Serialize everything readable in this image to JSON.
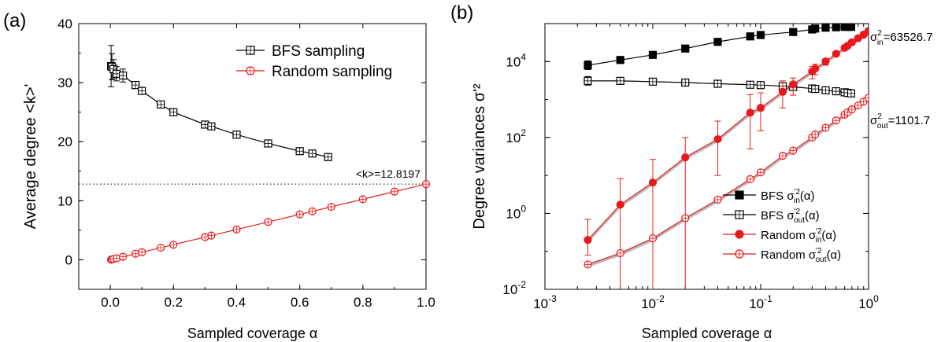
{
  "chart_data": [
    {
      "panel_label": "(a)",
      "type": "line",
      "xlabel": "Sampled coverage α",
      "ylabel": "Average degree <k>'",
      "xlim": [
        -0.1,
        1.0
      ],
      "ylim": [
        -5,
        40
      ],
      "xticks": [
        "0.0",
        "0.2",
        "0.4",
        "0.6",
        "0.8",
        "1.0"
      ],
      "yticks": [
        "0",
        "10",
        "20",
        "30",
        "40"
      ],
      "reference_line": {
        "y": 12.8197,
        "label": "<k>=12.8197",
        "style": "dotted"
      },
      "legend_position": "top-right",
      "colors": {
        "bfs": "#000000",
        "random": "#e8191c"
      },
      "series": [
        {
          "name": "BFS sampling",
          "marker": "open-square",
          "x": [
            0.0025,
            0.005,
            0.01,
            0.02,
            0.04,
            0.08,
            0.1,
            0.16,
            0.2,
            0.3,
            0.32,
            0.4,
            0.5,
            0.6,
            0.64,
            0.69
          ],
          "y": [
            32.8,
            32.7,
            32.3,
            31.5,
            31.2,
            29.6,
            28.6,
            26.3,
            25.0,
            22.9,
            22.6,
            21.2,
            19.7,
            18.4,
            18.0,
            17.4
          ],
          "yerr": [
            3.5,
            2.2,
            1.6,
            1.2,
            1.1,
            0.6,
            0.4,
            0.3,
            0.3,
            0.2,
            0.2,
            0.2,
            0.2,
            0.2,
            0.2,
            0.2
          ]
        },
        {
          "name": "Random sampling",
          "marker": "open-circle",
          "x": [
            0.0025,
            0.005,
            0.01,
            0.02,
            0.04,
            0.08,
            0.1,
            0.16,
            0.2,
            0.3,
            0.32,
            0.4,
            0.5,
            0.6,
            0.64,
            0.7,
            0.8,
            0.9,
            1.0
          ],
          "y": [
            0.03,
            0.06,
            0.13,
            0.26,
            0.51,
            1.03,
            1.28,
            2.05,
            2.56,
            3.85,
            4.1,
            5.13,
            6.41,
            7.69,
            8.2,
            8.97,
            10.26,
            11.54,
            12.82
          ]
        }
      ]
    },
    {
      "panel_label": "(b)",
      "type": "line",
      "scale": "log-log",
      "xlabel": "Sampled coverage α",
      "ylabel": "Degree variances σ'²",
      "xlim": [
        0.001,
        1.0
      ],
      "ylim": [
        0.01,
        100000
      ],
      "xticks": [
        {
          "base": "10",
          "exp": "-3"
        },
        {
          "base": "10",
          "exp": "-2"
        },
        {
          "base": "10",
          "exp": "-1"
        },
        {
          "base": "10",
          "exp": "0"
        }
      ],
      "yticks": [
        {
          "base": "10",
          "exp": "-2"
        },
        {
          "base": "10",
          "exp": "0"
        },
        {
          "base": "10",
          "exp": "2"
        },
        {
          "base": "10",
          "exp": "4"
        }
      ],
      "annotations": {
        "in": {
          "sym": "σ",
          "sup": "2",
          "sub": "in",
          "value": "=63526.7"
        },
        "out": {
          "sym": "σ",
          "sup": "2",
          "sub": "out",
          "value": "=1101.7"
        }
      },
      "legend_position": "bottom-right",
      "legend": [
        {
          "prefix": "BFS σ",
          "sup": "'2",
          "sub": "in",
          "suffix": "(α)"
        },
        {
          "prefix": "BFS σ",
          "sup": "'2",
          "sub": "out",
          "suffix": "(α)"
        },
        {
          "prefix": "Random σ",
          "sup": "'2",
          "sub": "in",
          "suffix": "(α)"
        },
        {
          "prefix": "Random σ",
          "sup": "'2",
          "sub": "out",
          "suffix": "(α)"
        }
      ],
      "series": [
        {
          "key": "bfs_in",
          "marker": "filled-square",
          "color": "#000000",
          "x": [
            0.0025,
            0.005,
            0.01,
            0.02,
            0.04,
            0.08,
            0.1,
            0.2,
            0.3,
            0.32,
            0.4,
            0.5,
            0.6,
            0.64,
            0.69
          ],
          "y": [
            8000,
            11000,
            15000,
            22000,
            33000,
            46000,
            50000,
            60000,
            70000,
            74000,
            78000,
            80000,
            82000,
            82000,
            82000
          ],
          "yerr_factor": [
            1.3,
            1.15,
            1.1,
            1.08,
            1.06,
            1.05,
            1.05,
            1.05,
            1.05,
            1.05,
            1.05,
            1.05,
            1.05,
            1.05,
            1.05
          ]
        },
        {
          "key": "bfs_out",
          "marker": "open-square",
          "color": "#000000",
          "x": [
            0.0025,
            0.005,
            0.01,
            0.02,
            0.04,
            0.08,
            0.1,
            0.16,
            0.2,
            0.3,
            0.32,
            0.4,
            0.5,
            0.6,
            0.64,
            0.69
          ],
          "y": [
            3100,
            3100,
            2950,
            2800,
            2600,
            2450,
            2400,
            2250,
            2150,
            1950,
            1900,
            1750,
            1650,
            1550,
            1500,
            1450
          ],
          "yerr_factor": [
            1.3,
            1.1,
            1.08,
            1.06,
            1.05,
            1.05,
            1.05,
            1.05,
            1.05,
            1.05,
            1.05,
            1.05,
            1.05,
            1.05,
            1.05,
            1.05
          ]
        },
        {
          "key": "random_in",
          "marker": "filled-circle",
          "color": "#e8191c",
          "x": [
            0.0025,
            0.005,
            0.01,
            0.02,
            0.04,
            0.08,
            0.1,
            0.16,
            0.2,
            0.3,
            0.32,
            0.4,
            0.5,
            0.6,
            0.64,
            0.7,
            0.8,
            0.9,
            1.0
          ],
          "y": [
            0.2,
            1.7,
            6.5,
            30,
            90,
            450,
            600,
            1600,
            2500,
            5500,
            6500,
            10000,
            16000,
            23000,
            26000,
            32000,
            41000,
            51000,
            63526.7
          ],
          "yerr_lo": [
            0.12,
            1.7,
            6.5,
            30,
            80,
            400,
            450,
            1000,
            1200,
            2000,
            2000,
            2000,
            2500,
            3000,
            2500,
            2000,
            2000,
            2000,
            0
          ],
          "yerr_hi": [
            0.5,
            6.5,
            20,
            70,
            180,
            900,
            900,
            1500,
            1200,
            2000,
            2000,
            2000,
            2500,
            3000,
            2500,
            2000,
            2000,
            2000,
            0
          ]
        },
        {
          "key": "random_out",
          "marker": "open-circle",
          "color": "#e8191c",
          "x": [
            0.0025,
            0.005,
            0.01,
            0.02,
            0.04,
            0.08,
            0.1,
            0.16,
            0.2,
            0.3,
            0.32,
            0.4,
            0.5,
            0.6,
            0.64,
            0.7,
            0.8,
            0.9,
            1.0
          ],
          "y": [
            0.045,
            0.09,
            0.22,
            0.75,
            2.3,
            8,
            12,
            33,
            45,
            100,
            120,
            180,
            280,
            400,
            460,
            550,
            700,
            880,
            1101.7
          ]
        }
      ],
      "guide_lines": {
        "color": "#bbbbbb"
      }
    }
  ]
}
